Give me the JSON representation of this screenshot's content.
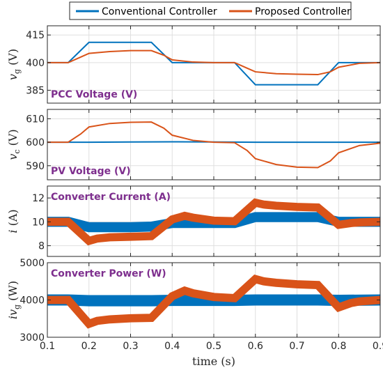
{
  "legend": {
    "position": "top",
    "entries": [
      {
        "label": "Conventional Controller",
        "color": "#0072bd"
      },
      {
        "label": "Proposed Controller",
        "color": "#d95319"
      }
    ]
  },
  "xaxis": {
    "label": "time (s)",
    "range": [
      0.1,
      0.9
    ],
    "ticks": [
      "0.1",
      "0.2",
      "0.3",
      "0.4",
      "0.5",
      "0.6",
      "0.7",
      "0.8",
      "0.9"
    ]
  },
  "chart_data": [
    {
      "type": "line",
      "annotation": "PCC Voltage (V)",
      "ylabel": "v_g (V)",
      "ylabel_main": "v",
      "ylabel_sub": "g",
      "ylabel_unit": " (V)",
      "ylim": [
        378,
        420
      ],
      "yticks": [
        385,
        400,
        415
      ],
      "grid": true,
      "series": [
        {
          "name": "Conventional Controller",
          "color": "#0072bd",
          "band": 0,
          "x": [
            0.1,
            0.15,
            0.2,
            0.35,
            0.4,
            0.55,
            0.6,
            0.75,
            0.8,
            0.9
          ],
          "y": [
            400,
            400,
            411,
            411,
            400,
            400,
            388,
            388,
            400,
            400
          ]
        },
        {
          "name": "Proposed Controller",
          "color": "#d95319",
          "band": 0,
          "x": [
            0.1,
            0.15,
            0.18,
            0.2,
            0.25,
            0.3,
            0.35,
            0.38,
            0.4,
            0.45,
            0.5,
            0.55,
            0.58,
            0.6,
            0.65,
            0.7,
            0.75,
            0.78,
            0.8,
            0.85,
            0.9
          ],
          "y": [
            400,
            400,
            403,
            405,
            406,
            406.5,
            406.5,
            404,
            401.5,
            400.3,
            400,
            400,
            397,
            395,
            394,
            393.7,
            393.5,
            395,
            397.5,
            399.6,
            400
          ]
        }
      ]
    },
    {
      "type": "line",
      "annotation": "PV Voltage (V)",
      "ylabel": "v_c (V)",
      "ylabel_main": "v",
      "ylabel_sub": "c",
      "ylabel_unit": " (V)",
      "ylim": [
        584,
        614
      ],
      "yticks": [
        590,
        600,
        610
      ],
      "grid": true,
      "series": [
        {
          "name": "Conventional Controller",
          "color": "#0072bd",
          "band": 0,
          "x": [
            0.1,
            0.2,
            0.3,
            0.4,
            0.5,
            0.6,
            0.7,
            0.8,
            0.9
          ],
          "y": [
            600,
            600,
            600.1,
            600.2,
            600.1,
            600,
            600,
            600,
            600
          ]
        },
        {
          "name": "Proposed Controller",
          "color": "#d95319",
          "band": 0,
          "x": [
            0.1,
            0.15,
            0.18,
            0.2,
            0.25,
            0.3,
            0.35,
            0.38,
            0.4,
            0.45,
            0.5,
            0.55,
            0.58,
            0.6,
            0.65,
            0.7,
            0.75,
            0.78,
            0.8,
            0.85,
            0.9
          ],
          "y": [
            600,
            600,
            603.5,
            606.5,
            608,
            608.5,
            608.6,
            606,
            603,
            600.8,
            600,
            599.8,
            596.5,
            593,
            590.5,
            589.4,
            589.2,
            592,
            595.5,
            598.6,
            599.6
          ]
        }
      ]
    },
    {
      "type": "line",
      "annotation": "Converter Current (A)",
      "ylabel": "i (A)",
      "ylabel_main": "i",
      "ylabel_sub": "",
      "ylabel_unit": " (A)",
      "ylim": [
        7.1,
        13.0
      ],
      "yticks": [
        8,
        10,
        12
      ],
      "grid": true,
      "series": [
        {
          "name": "Conventional Controller",
          "color": "#0072bd",
          "band": 0.42,
          "x": [
            0.1,
            0.15,
            0.2,
            0.25,
            0.3,
            0.35,
            0.4,
            0.45,
            0.5,
            0.55,
            0.6,
            0.65,
            0.7,
            0.75,
            0.8,
            0.85,
            0.9
          ],
          "y": [
            10,
            10,
            9.55,
            9.55,
            9.55,
            9.6,
            9.9,
            9.9,
            9.9,
            9.9,
            10.4,
            10.4,
            10.4,
            10.4,
            10.0,
            10.0,
            10.0
          ]
        },
        {
          "name": "Proposed Controller",
          "color": "#d95319",
          "band": 0.34,
          "x": [
            0.1,
            0.15,
            0.2,
            0.22,
            0.25,
            0.3,
            0.35,
            0.4,
            0.43,
            0.45,
            0.5,
            0.55,
            0.6,
            0.62,
            0.65,
            0.7,
            0.75,
            0.8,
            0.83,
            0.85,
            0.9
          ],
          "y": [
            10,
            10,
            8.4,
            8.6,
            8.7,
            8.75,
            8.8,
            10.2,
            10.5,
            10.35,
            10.1,
            10.05,
            11.6,
            11.45,
            11.35,
            11.25,
            11.2,
            9.75,
            9.9,
            9.95,
            10
          ]
        }
      ]
    },
    {
      "type": "line",
      "annotation": "Converter Power (W)",
      "ylabel": "iv_g (W)",
      "ylabel_main": "iv",
      "ylabel_sub": "g",
      "ylabel_unit": " (W)",
      "ylim": [
        3000,
        5000
      ],
      "yticks": [
        3000,
        4000,
        5000
      ],
      "grid": true,
      "series": [
        {
          "name": "Conventional Controller",
          "color": "#0072bd",
          "band": 150,
          "x": [
            0.1,
            0.15,
            0.2,
            0.35,
            0.4,
            0.55,
            0.6,
            0.75,
            0.8,
            0.9
          ],
          "y": [
            4000,
            4000,
            3980,
            3980,
            3990,
            3990,
            4000,
            4000,
            3990,
            4000
          ]
        },
        {
          "name": "Proposed Controller",
          "color": "#d95319",
          "band": 110,
          "x": [
            0.1,
            0.15,
            0.2,
            0.22,
            0.25,
            0.3,
            0.35,
            0.4,
            0.43,
            0.45,
            0.5,
            0.55,
            0.6,
            0.62,
            0.65,
            0.7,
            0.75,
            0.8,
            0.83,
            0.85,
            0.9
          ],
          "y": [
            4000,
            4000,
            3360,
            3440,
            3480,
            3510,
            3520,
            4100,
            4250,
            4180,
            4080,
            4050,
            4560,
            4500,
            4460,
            4420,
            4400,
            3800,
            3920,
            3960,
            4000
          ]
        }
      ]
    }
  ]
}
